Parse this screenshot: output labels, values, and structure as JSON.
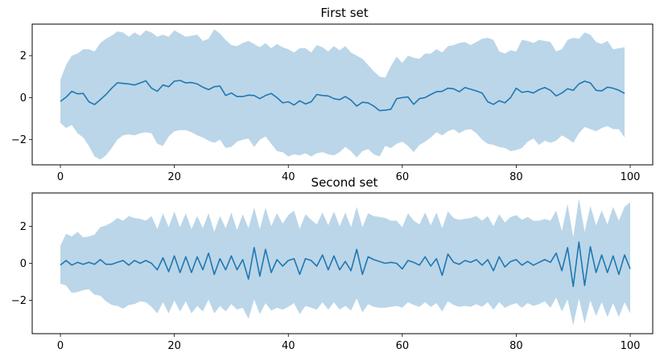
{
  "colors": {
    "line": "#1f77b4",
    "band": "#1f77b4"
  },
  "chart_data": [
    {
      "type": "area",
      "title": "First set",
      "xlabel": "",
      "ylabel": "",
      "xlim": [
        -4.95,
        103.95
      ],
      "ylim": [
        -3.2,
        3.5
      ],
      "xticks": [
        0,
        20,
        40,
        60,
        80,
        100
      ],
      "yticks": [
        -2,
        0,
        2
      ],
      "grid": false,
      "legend": "none",
      "x_start": 0,
      "x_step": 1,
      "mean": [
        -0.18,
        0.02,
        0.3,
        0.18,
        0.2,
        -0.2,
        -0.33,
        -0.1,
        0.15,
        0.45,
        0.7,
        0.68,
        0.65,
        0.6,
        0.7,
        0.8,
        0.45,
        0.3,
        0.6,
        0.52,
        0.78,
        0.82,
        0.7,
        0.72,
        0.65,
        0.5,
        0.38,
        0.52,
        0.55,
        0.1,
        0.22,
        0.05,
        0.05,
        0.12,
        0.1,
        -0.05,
        0.1,
        0.2,
        0.0,
        -0.25,
        -0.2,
        -0.35,
        -0.15,
        -0.3,
        -0.2,
        0.15,
        0.1,
        0.08,
        -0.05,
        -0.1,
        0.05,
        -0.12,
        -0.4,
        -0.22,
        -0.25,
        -0.4,
        -0.62,
        -0.6,
        -0.55,
        -0.05,
        0.0,
        0.03,
        -0.32,
        -0.05,
        0.0,
        0.15,
        0.28,
        0.3,
        0.45,
        0.42,
        0.28,
        0.48,
        0.4,
        0.32,
        0.22,
        -0.2,
        -0.32,
        -0.15,
        -0.25,
        0.0,
        0.45,
        0.25,
        0.3,
        0.22,
        0.38,
        0.48,
        0.35,
        0.08,
        0.22,
        0.42,
        0.35,
        0.65,
        0.78,
        0.7,
        0.35,
        0.32,
        0.5,
        0.45,
        0.35,
        0.2
      ],
      "lower": [
        -1.2,
        -1.45,
        -1.3,
        -1.7,
        -1.9,
        -2.3,
        -2.8,
        -2.95,
        -2.75,
        -2.4,
        -2.0,
        -1.8,
        -1.75,
        -1.8,
        -1.7,
        -1.65,
        -1.7,
        -2.2,
        -2.3,
        -1.85,
        -1.6,
        -1.55,
        -1.55,
        -1.65,
        -1.8,
        -1.9,
        -2.05,
        -2.15,
        -2.0,
        -2.4,
        -2.35,
        -2.1,
        -2.0,
        -1.95,
        -2.35,
        -2.0,
        -1.85,
        -2.2,
        -2.55,
        -2.6,
        -2.8,
        -2.7,
        -2.75,
        -2.65,
        -2.8,
        -2.65,
        -2.6,
        -2.7,
        -2.75,
        -2.6,
        -2.35,
        -2.55,
        -2.85,
        -2.55,
        -2.45,
        -2.7,
        -2.8,
        -2.3,
        -2.4,
        -2.2,
        -2.1,
        -2.3,
        -2.6,
        -2.25,
        -2.1,
        -1.9,
        -1.65,
        -1.8,
        -1.6,
        -1.5,
        -1.7,
        -1.55,
        -1.5,
        -1.7,
        -2.0,
        -2.2,
        -2.25,
        -2.35,
        -2.4,
        -2.55,
        -2.5,
        -2.4,
        -2.1,
        -1.95,
        -2.25,
        -2.05,
        -2.15,
        -2.05,
        -1.8,
        -1.95,
        -2.15,
        -1.7,
        -1.4,
        -1.5,
        -1.6,
        -1.45,
        -1.35,
        -1.5,
        -1.5,
        -1.9
      ],
      "upper": [
        0.85,
        1.55,
        2.0,
        2.1,
        2.3,
        2.3,
        2.2,
        2.6,
        2.8,
        2.95,
        3.15,
        3.1,
        2.9,
        3.1,
        2.95,
        3.2,
        3.1,
        2.9,
        3.0,
        2.9,
        3.2,
        3.05,
        2.9,
        2.95,
        3.0,
        2.7,
        2.8,
        3.25,
        3.05,
        2.75,
        2.5,
        2.45,
        2.6,
        2.7,
        2.55,
        2.4,
        2.6,
        2.35,
        2.55,
        2.4,
        2.3,
        2.15,
        2.35,
        2.35,
        2.15,
        2.5,
        2.4,
        2.2,
        2.45,
        2.25,
        2.45,
        2.15,
        2.0,
        1.85,
        1.55,
        1.25,
        1.0,
        0.95,
        1.5,
        1.95,
        1.65,
        2.0,
        1.9,
        1.85,
        2.1,
        2.1,
        2.3,
        2.15,
        2.45,
        2.5,
        2.6,
        2.65,
        2.5,
        2.65,
        2.8,
        2.85,
        2.75,
        2.2,
        2.1,
        2.25,
        2.2,
        2.75,
        2.7,
        2.6,
        2.75,
        2.7,
        2.65,
        2.2,
        2.3,
        2.75,
        2.85,
        2.8,
        3.1,
        3.0,
        2.65,
        2.55,
        2.7,
        2.3,
        2.35,
        2.4
      ]
    },
    {
      "type": "area",
      "title": "Second set",
      "xlabel": "",
      "ylabel": "",
      "xlim": [
        -4.95,
        103.95
      ],
      "ylim": [
        -3.8,
        3.8
      ],
      "xticks": [
        0,
        20,
        40,
        60,
        80,
        100
      ],
      "yticks": [
        -2,
        0,
        2
      ],
      "grid": false,
      "legend": "none",
      "x_start": 0,
      "x_step": 1,
      "mean": [
        -0.1,
        0.15,
        -0.1,
        0.05,
        -0.05,
        0.05,
        -0.05,
        0.2,
        -0.05,
        -0.05,
        0.05,
        0.15,
        -0.1,
        0.15,
        0.0,
        0.15,
        0.0,
        -0.35,
        0.3,
        -0.45,
        0.4,
        -0.5,
        0.35,
        -0.5,
        0.35,
        -0.35,
        0.55,
        -0.6,
        0.25,
        -0.35,
        0.4,
        -0.35,
        0.2,
        -0.85,
        0.85,
        -0.7,
        0.75,
        -0.5,
        0.2,
        -0.15,
        0.15,
        0.25,
        -0.6,
        0.25,
        0.15,
        -0.15,
        0.45,
        -0.35,
        0.4,
        -0.35,
        0.1,
        -0.4,
        0.75,
        -0.6,
        0.35,
        0.2,
        0.1,
        0.0,
        0.05,
        0.0,
        -0.3,
        0.15,
        0.05,
        -0.1,
        0.35,
        -0.15,
        0.25,
        -0.65,
        0.5,
        0.05,
        -0.05,
        0.15,
        0.05,
        0.2,
        -0.1,
        0.2,
        -0.4,
        0.35,
        -0.2,
        0.1,
        0.2,
        -0.1,
        0.1,
        -0.1,
        0.05,
        0.2,
        0.05,
        0.55,
        -0.4,
        0.85,
        -1.25,
        1.15,
        -1.2,
        0.9,
        -0.5,
        0.45,
        -0.5,
        0.4,
        -0.6,
        0.45,
        -0.3
      ],
      "lower": [
        -1.1,
        -1.2,
        -1.6,
        -1.55,
        -1.45,
        -1.4,
        -1.7,
        -1.75,
        -2.05,
        -2.25,
        -2.3,
        -2.45,
        -2.25,
        -2.2,
        -2.05,
        -2.1,
        -2.35,
        -2.7,
        -2.1,
        -2.7,
        -2.0,
        -2.6,
        -2.05,
        -2.7,
        -2.3,
        -2.6,
        -1.95,
        -2.7,
        -2.3,
        -2.6,
        -2.2,
        -2.5,
        -2.4,
        -3.0,
        -1.95,
        -2.75,
        -2.15,
        -2.55,
        -2.4,
        -2.5,
        -2.35,
        -2.15,
        -2.75,
        -2.3,
        -2.4,
        -2.5,
        -2.1,
        -2.5,
        -2.1,
        -2.5,
        -2.3,
        -2.55,
        -1.9,
        -2.65,
        -2.2,
        -2.35,
        -2.4,
        -2.4,
        -2.35,
        -2.3,
        -2.4,
        -2.1,
        -2.25,
        -2.35,
        -2.1,
        -2.35,
        -2.15,
        -2.6,
        -2.05,
        -2.25,
        -2.35,
        -2.3,
        -2.35,
        -2.2,
        -2.35,
        -2.1,
        -2.5,
        -2.1,
        -2.4,
        -2.25,
        -2.15,
        -2.4,
        -2.15,
        -2.3,
        -2.2,
        -2.05,
        -2.4,
        -1.85,
        -2.6,
        -1.95,
        -3.35,
        -1.9,
        -3.25,
        -2.0,
        -2.85,
        -2.1,
        -2.9,
        -2.15,
        -2.9,
        -2.1,
        -2.7
      ],
      "upper": [
        0.95,
        1.6,
        1.45,
        1.7,
        1.4,
        1.45,
        1.55,
        1.95,
        2.05,
        2.2,
        2.45,
        2.3,
        2.55,
        2.45,
        2.4,
        2.3,
        2.55,
        1.85,
        2.7,
        1.95,
        2.8,
        1.95,
        2.7,
        1.85,
        2.55,
        1.9,
        2.7,
        1.7,
        2.55,
        1.9,
        2.75,
        1.8,
        2.65,
        1.9,
        3.0,
        1.85,
        3.0,
        2.0,
        2.7,
        2.15,
        2.6,
        2.85,
        1.85,
        2.65,
        2.35,
        2.1,
        2.75,
        2.05,
        2.8,
        2.0,
        2.75,
        1.95,
        3.05,
        1.95,
        2.7,
        2.55,
        2.5,
        2.45,
        2.3,
        2.3,
        1.95,
        2.7,
        2.3,
        2.1,
        2.75,
        2.05,
        2.75,
        1.9,
        2.8,
        2.45,
        2.35,
        2.4,
        2.45,
        2.55,
        2.3,
        2.55,
        2.0,
        2.65,
        2.2,
        2.5,
        2.6,
        2.35,
        2.5,
        2.3,
        2.3,
        2.4,
        2.3,
        2.85,
        1.75,
        3.2,
        1.4,
        3.5,
        1.7,
        3.1,
        2.05,
        2.85,
        2.1,
        3.05,
        2.3,
        3.05,
        3.3
      ]
    }
  ]
}
